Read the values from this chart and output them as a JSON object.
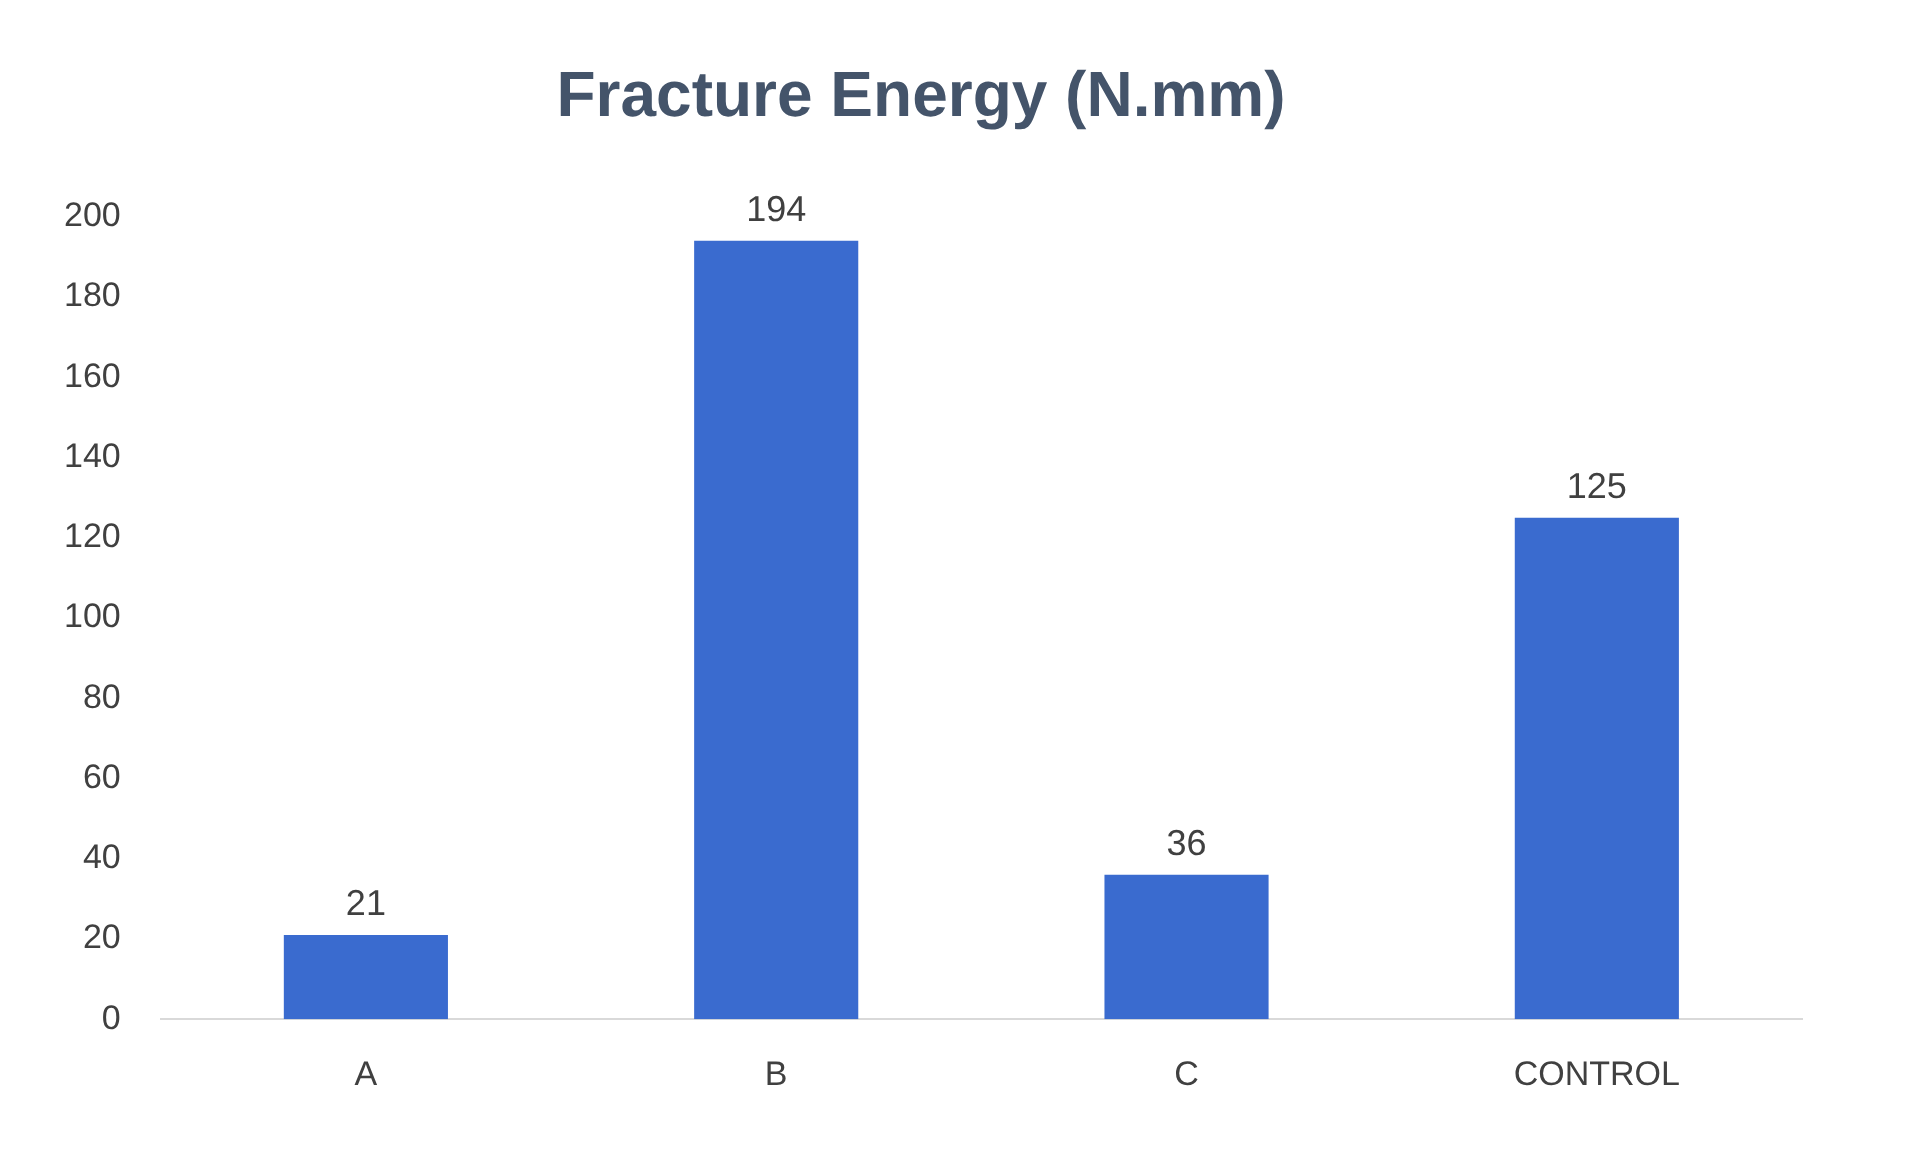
{
  "chart_data": {
    "type": "bar",
    "title": "Fracture Energy (N.mm)",
    "categories": [
      "A",
      "B",
      "C",
      "CONTROL"
    ],
    "values": [
      21,
      194,
      36,
      125
    ],
    "color": "#3a6bcf",
    "ylim": [
      0,
      200
    ],
    "yticks": [
      0,
      20,
      40,
      60,
      80,
      100,
      120,
      140,
      160,
      180,
      200
    ],
    "data_labels": true
  }
}
